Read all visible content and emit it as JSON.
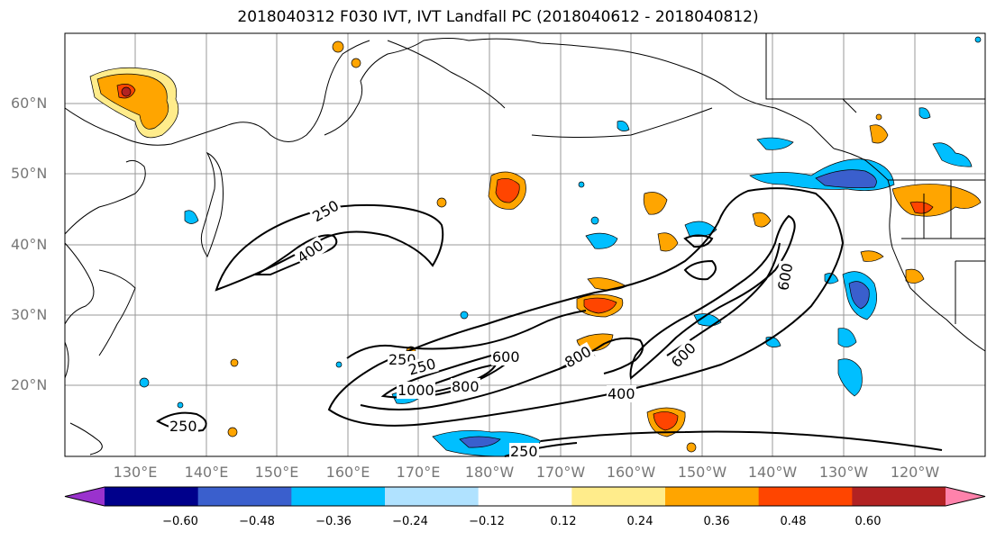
{
  "title": "2018040312 F030 IVT, IVT Landfall PC (2018040612 - 2018040812)",
  "lat_labels": [
    "60°N",
    "50°N",
    "40°N",
    "30°N",
    "20°N"
  ],
  "lon_labels": [
    "130°E",
    "140°E",
    "150°E",
    "160°E",
    "170°E",
    "180°W",
    "170°W",
    "160°W",
    "150°W",
    "140°W",
    "130°W",
    "120°W"
  ],
  "contour_labels": [
    "250",
    "400",
    "250",
    "250",
    "600",
    "800",
    "1000",
    "800",
    "400",
    "600",
    "600",
    "250",
    "250"
  ],
  "colorbar": {
    "colors": [
      "#9a32cd",
      "#00008b",
      "#3a5fcd",
      "#00bfff",
      "#b0e2ff",
      "#ffffff",
      "#ffec8b",
      "#ffa500",
      "#ff4500",
      "#b22222",
      "#ff82ab"
    ],
    "tick_labels": [
      "−0.60",
      "−0.48",
      "−0.36",
      "−0.24",
      "−0.12",
      "0.12",
      "0.24",
      "0.36",
      "0.48",
      "0.60"
    ]
  }
}
